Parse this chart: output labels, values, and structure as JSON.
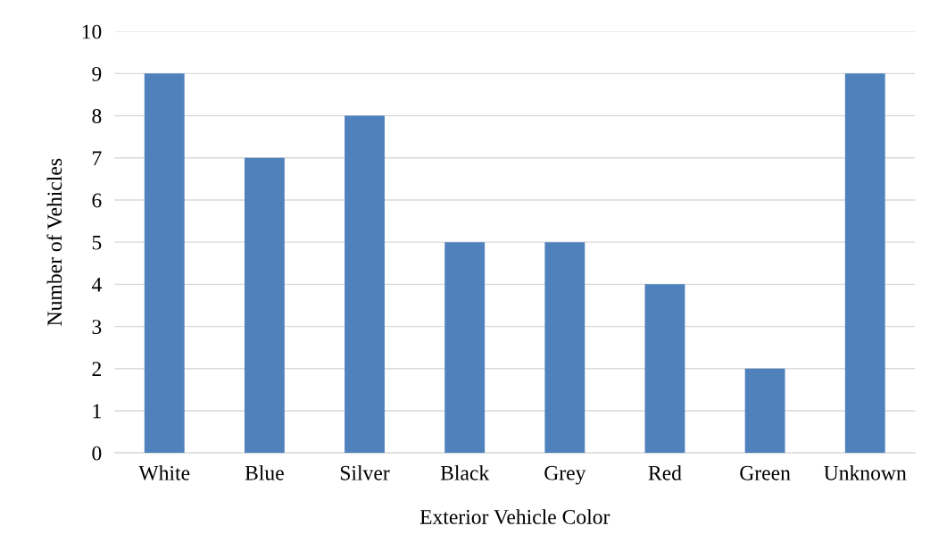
{
  "chart_data": {
    "type": "bar",
    "xlabel": "Exterior Vehicle Color",
    "ylabel": "Number of Vehicles",
    "categories": [
      "White",
      "Blue",
      "Silver",
      "Black",
      "Grey",
      "Red",
      "Green",
      "Unknown"
    ],
    "values": [
      9,
      7,
      8,
      5,
      5,
      4,
      2,
      9
    ],
    "color": "#4f81bd",
    "ylim": [
      0,
      10
    ],
    "yticks": [
      0,
      1,
      2,
      3,
      4,
      5,
      6,
      7,
      8,
      9,
      10
    ],
    "grid": "y"
  }
}
